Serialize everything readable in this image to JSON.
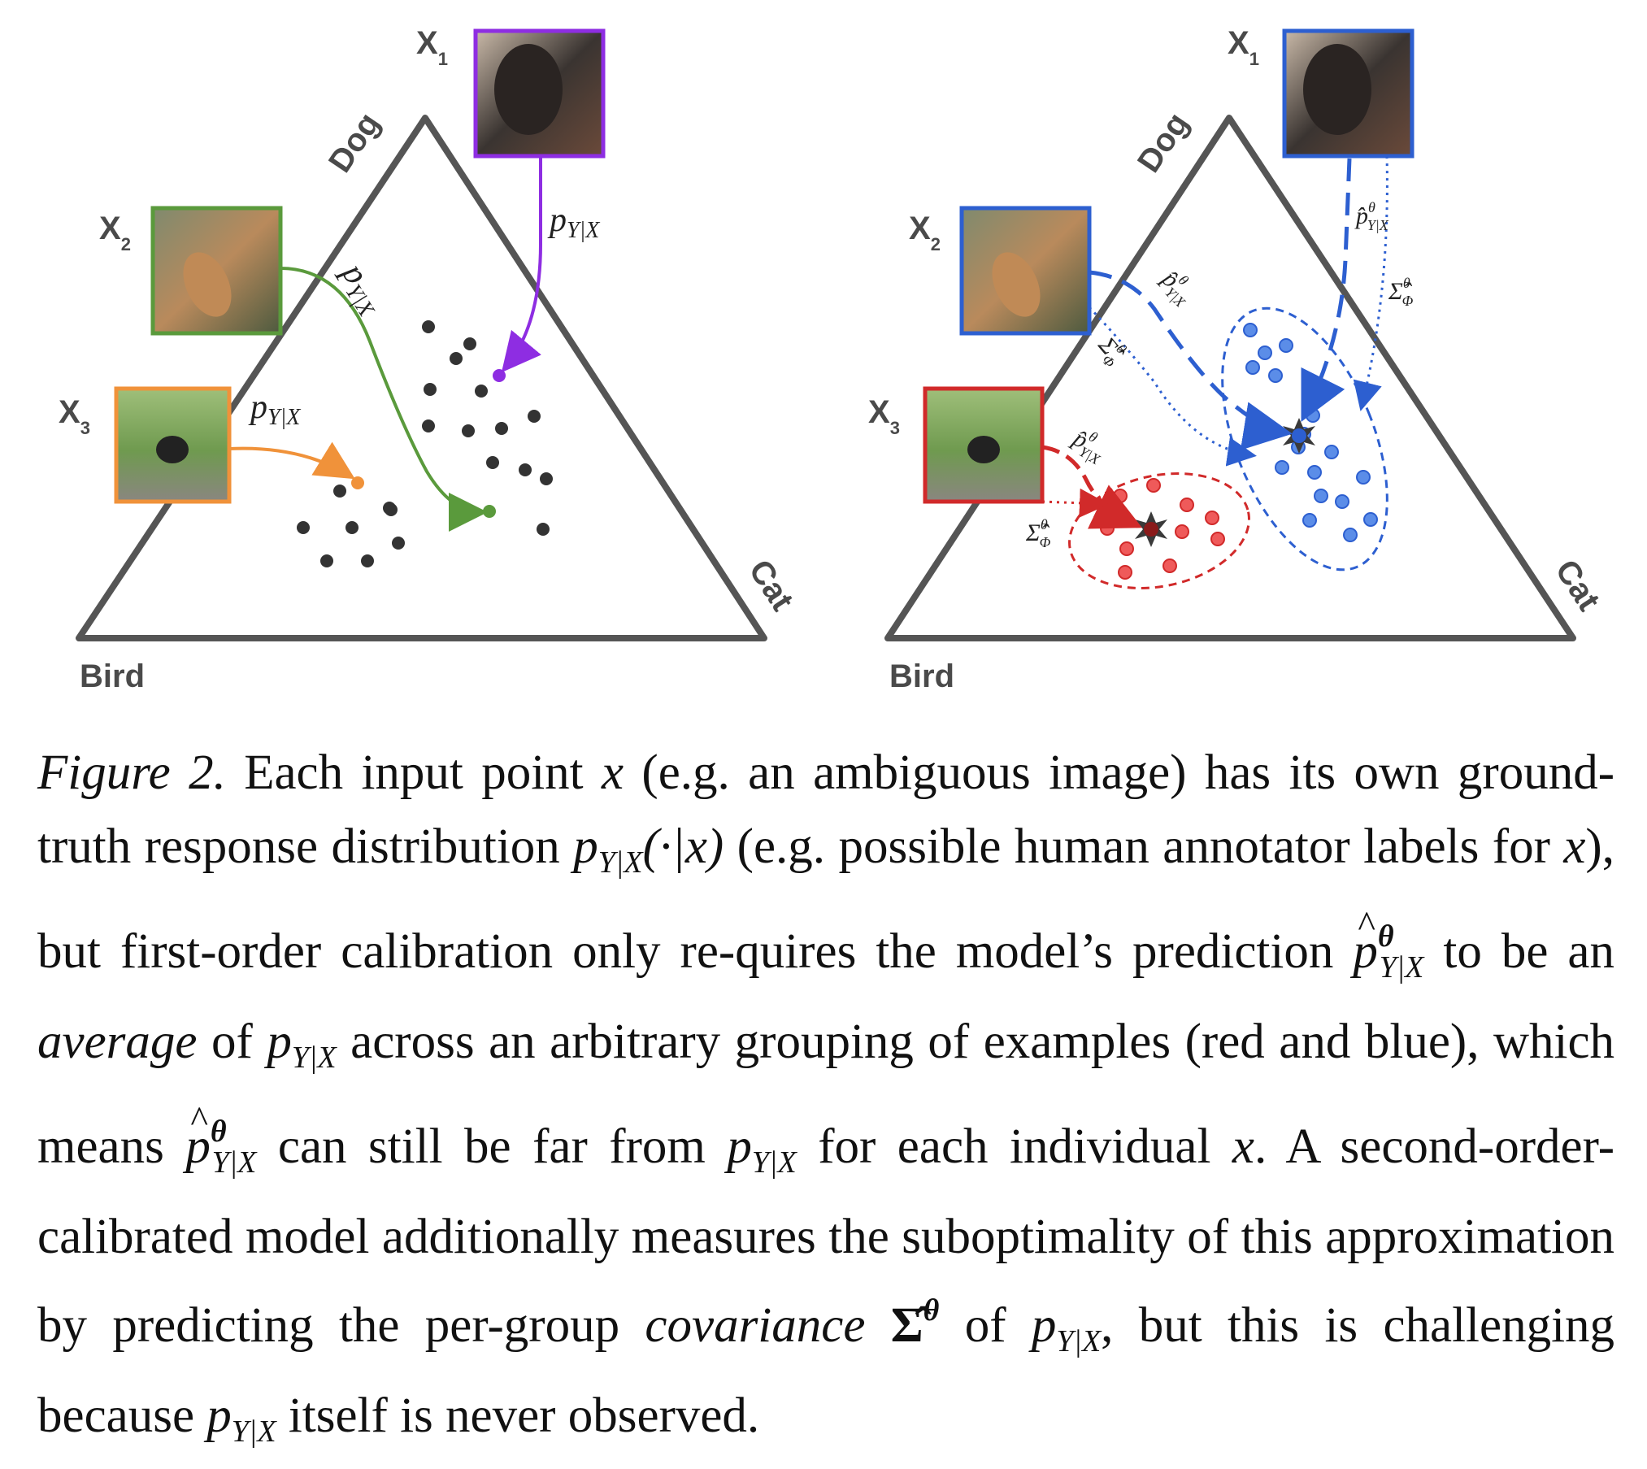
{
  "figure": {
    "vertices": {
      "dog": "Dog",
      "cat": "Cat",
      "bird": "Bird"
    },
    "inputs": {
      "x1": "X",
      "x1_sub": "1",
      "x2": "X",
      "x2_sub": "2",
      "x3": "X",
      "x3_sub": "3"
    },
    "left_panel": {
      "arrow_label_base": "p",
      "arrow_label_sub": "Y|X"
    },
    "right_panel": {
      "pred_label_base": "p̂",
      "pred_label_sup": "θ",
      "pred_label_sub": "Y|X",
      "cov_label_base": "Σ̂",
      "cov_label_sup": "θ",
      "cov_label_sub": "Φ"
    },
    "colors": {
      "x1_left": "#8e2de2",
      "x2_left": "#5a9a3c",
      "x3_left": "#f0923a",
      "blue": "#2d5fd0",
      "red": "#d12a2a",
      "dots": "#333333",
      "triangle": "#555555"
    }
  },
  "caption": {
    "label": "Figure 2.",
    "t1": "Each input point",
    "x": "x",
    "t2": "(e.g. an ambiguous image) has its own ground-truth response distribution",
    "p": "p",
    "sub": "Y|X",
    "arg": "(·|x)",
    "t3": "(e.g. possible human annotator labels for",
    "t4": "), but first-order calibration only re-quires the model’s prediction",
    "theta": "θ",
    "t5": "to be an",
    "average": "average",
    "t6": "of",
    "t7": "across an arbitrary grouping of examples (red and blue), which means",
    "t8": "can still be far from",
    "t9": "for each individual",
    "t10": ". A second-order-calibrated model additionally measures the suboptimality of this approximation by predicting the per-group",
    "covariance": "covariance",
    "sigma": "Σ̂",
    "t11": "of",
    "t12": ", but this is challenging because",
    "t13": "itself is never observed."
  }
}
